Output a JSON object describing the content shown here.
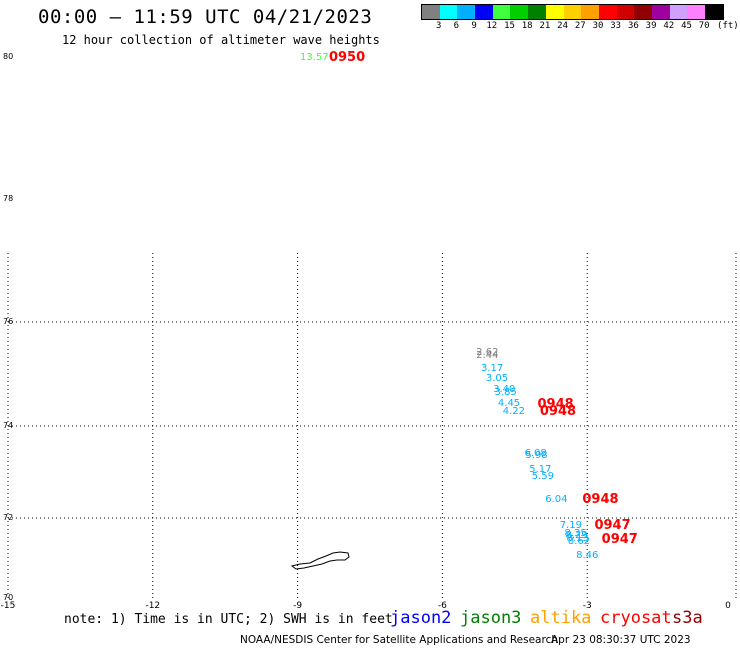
{
  "header": {
    "title": "00:00 – 11:59 UTC 04/21/2023",
    "subtitle": "12 hour collection of altimeter wave heights"
  },
  "colorbar": {
    "colors": [
      "#808080",
      "#00ffff",
      "#00b0ff",
      "#0000ff",
      "#40ff40",
      "#00d000",
      "#008000",
      "#ffff00",
      "#ffd000",
      "#ffa000",
      "#ff0000",
      "#d00000",
      "#900000",
      "#a000a0",
      "#d0a0ff",
      "#ff80ff",
      "#000000"
    ],
    "labels": [
      "3",
      "6",
      "9",
      "12",
      "15",
      "18",
      "21",
      "24",
      "27",
      "30",
      "33",
      "36",
      "39",
      "42",
      "45",
      "70"
    ],
    "unit": "(ft)"
  },
  "axes": {
    "y_ticks": [
      "80",
      "78",
      "76",
      "74",
      "72",
      "70"
    ],
    "x_ticks": [
      "-15",
      "-12",
      "-9",
      "-6",
      "-3",
      "0"
    ]
  },
  "observations": [
    {
      "text": "13.57",
      "color": "#40ff40",
      "lon": -8.95,
      "lat": 79.98
    },
    {
      "text": "0950",
      "color": "#ff0000",
      "lon": -8.35,
      "lat": 79.98
    },
    {
      "text": "2.62",
      "color": "#808080",
      "lon": -5.3,
      "lat": 75.4
    },
    {
      "text": "2.44",
      "color": "#808080",
      "lon": -5.3,
      "lat": 75.35
    },
    {
      "text": "3.17",
      "color": "#00b0ff",
      "lon": -5.2,
      "lat": 75.1
    },
    {
      "text": "3.05",
      "color": "#00b0ff",
      "lon": -5.1,
      "lat": 74.9
    },
    {
      "text": "3.40",
      "color": "#00b0ff",
      "lon": -4.95,
      "lat": 74.7
    },
    {
      "text": "3.85",
      "color": "#00b0ff",
      "lon": -4.92,
      "lat": 74.64
    },
    {
      "text": "4.45",
      "color": "#00b0ff",
      "lon": -4.85,
      "lat": 74.42
    },
    {
      "text": "4.22",
      "color": "#00b0ff",
      "lon": -4.75,
      "lat": 74.26
    },
    {
      "text": "0948",
      "color": "#ff0000",
      "lon": -4.03,
      "lat": 74.4
    },
    {
      "text": "0948",
      "color": "#ff0000",
      "lon": -3.98,
      "lat": 74.26
    },
    {
      "text": "6.08",
      "color": "#00b0ff",
      "lon": -4.3,
      "lat": 73.4
    },
    {
      "text": "5.98",
      "color": "#00b0ff",
      "lon": -4.28,
      "lat": 73.35
    },
    {
      "text": "5.17",
      "color": "#00b0ff",
      "lon": -4.2,
      "lat": 73.05
    },
    {
      "text": "5.59",
      "color": "#00b0ff",
      "lon": -4.15,
      "lat": 72.9
    },
    {
      "text": "6.04",
      "color": "#00b0ff",
      "lon": -3.87,
      "lat": 72.4
    },
    {
      "text": "0948",
      "color": "#ff0000",
      "lon": -3.1,
      "lat": 72.4
    },
    {
      "text": "7.19",
      "color": "#00b0ff",
      "lon": -3.57,
      "lat": 71.8
    },
    {
      "text": "0947",
      "color": "#ff0000",
      "lon": -2.85,
      "lat": 71.8
    },
    {
      "text": "8.35",
      "color": "#00b0ff",
      "lon": -3.47,
      "lat": 71.6
    },
    {
      "text": "8.29",
      "color": "#00b0ff",
      "lon": -3.45,
      "lat": 71.55
    },
    {
      "text": "8.13",
      "color": "#00b0ff",
      "lon": -3.43,
      "lat": 71.48
    },
    {
      "text": "8.62",
      "color": "#00b0ff",
      "lon": -3.4,
      "lat": 71.4
    },
    {
      "text": "0947",
      "color": "#ff0000",
      "lon": -2.7,
      "lat": 71.45
    },
    {
      "text": "8.46",
      "color": "#00b0ff",
      "lon": -3.23,
      "lat": 71.05
    }
  ],
  "footer": {
    "note": "note: 1) Time is in UTC; 2) SWH is in feet",
    "legend": [
      {
        "name": "jason2",
        "color": "#0000ff"
      },
      {
        "name": "jason3",
        "color": "#008000"
      },
      {
        "name": "altika",
        "color": "#ffa000"
      },
      {
        "name": "cryosat",
        "color": "#ff0000"
      },
      {
        "name": "s3a",
        "color": "#900000"
      }
    ],
    "credit": "NOAA/NESDIS Center for Satellite Applications and Research",
    "timestamp": "Apr 23 08:30:37 UTC 2023"
  }
}
